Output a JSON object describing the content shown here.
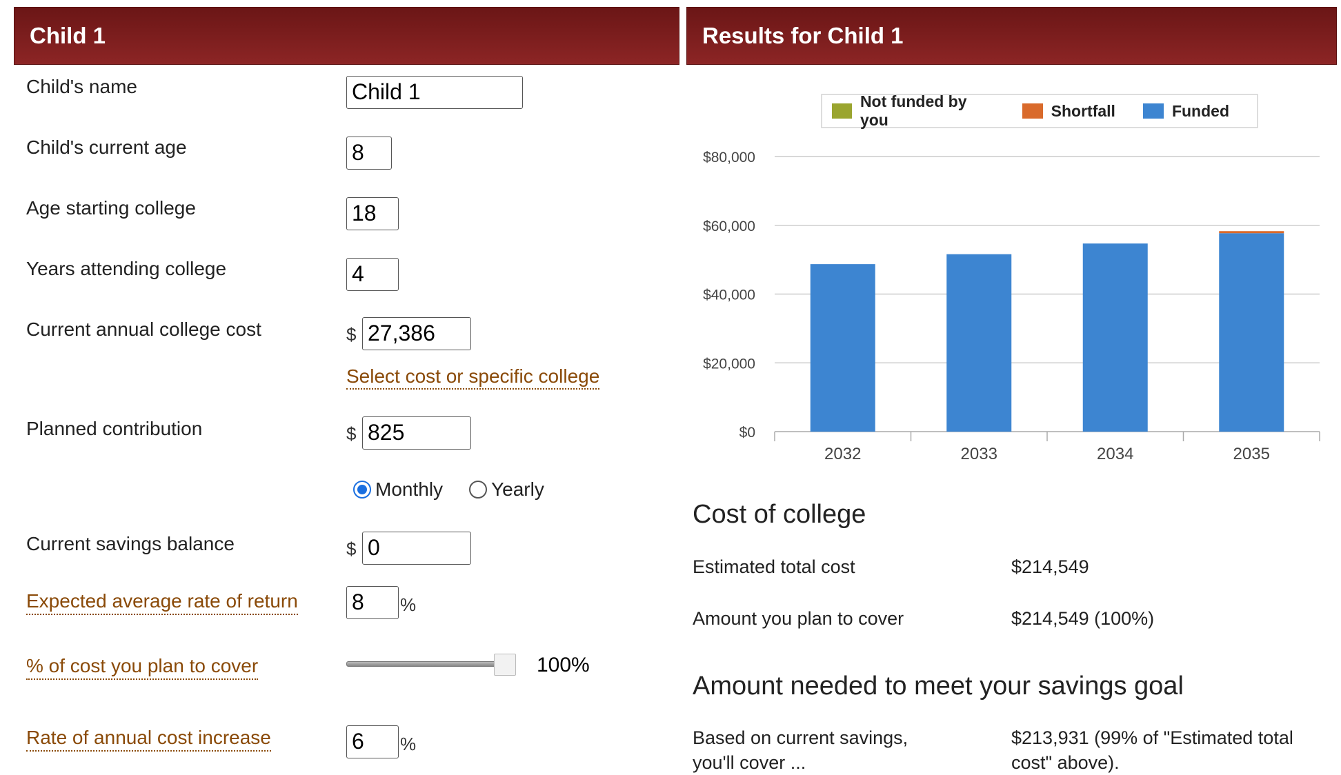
{
  "left_panel": {
    "title": "Child 1",
    "fields": {
      "child_name": {
        "label": "Child's name",
        "value": "Child 1"
      },
      "current_age": {
        "label": "Child's current age",
        "value": "8"
      },
      "age_starting": {
        "label": "Age starting college",
        "value": "18"
      },
      "years_attending": {
        "label": "Years attending college",
        "value": "4"
      },
      "annual_cost": {
        "label": "Current annual college cost",
        "prefix": "$",
        "value": "27,386"
      },
      "select_cost_link": "Select cost or specific college",
      "contribution": {
        "label": "Planned contribution",
        "prefix": "$",
        "value": "825"
      },
      "frequency": {
        "monthly": "Monthly",
        "yearly": "Yearly",
        "selected": "Monthly"
      },
      "savings_balance": {
        "label": "Current savings balance",
        "prefix": "$",
        "value": "0"
      },
      "rate_of_return": {
        "label": "Expected average rate of return",
        "value": "8",
        "suffix": "%"
      },
      "percent_cover": {
        "label": "% of cost you plan to cover",
        "value": "100%",
        "level": 1.0
      },
      "cost_increase": {
        "label": "Rate of annual cost increase",
        "value": "6",
        "suffix": "%"
      }
    }
  },
  "right_panel": {
    "title": "Results for Child 1",
    "legend": {
      "not_funded": {
        "label": "Not funded by you",
        "color": "#9aa52f"
      },
      "shortfall": {
        "label": "Shortfall",
        "color": "#d96a2b"
      },
      "funded": {
        "label": "Funded",
        "color": "#3d85d1"
      }
    },
    "cost_section": {
      "title": "Cost of college",
      "estimated_label": "Estimated total cost",
      "estimated_value": "$214,549",
      "cover_label": "Amount you plan to cover",
      "cover_value": "$214,549 (100%)"
    },
    "goal_section": {
      "title": "Amount needed to meet your savings goal",
      "based_label_line1": "Based on current savings,",
      "based_label_line2": "you'll cover ...",
      "based_value_line1": "$213,931 (99% of \"Estimated total",
      "based_value_line2": "cost\" above)."
    }
  },
  "chart_data": {
    "type": "bar",
    "stacked": true,
    "categories": [
      "2032",
      "2033",
      "2034",
      "2035"
    ],
    "series": [
      {
        "name": "Funded",
        "color": "#3d85d1",
        "values": [
          48700,
          51600,
          54700,
          57700
        ]
      },
      {
        "name": "Shortfall",
        "color": "#d96a2b",
        "values": [
          0,
          0,
          0,
          600
        ]
      },
      {
        "name": "Not funded by you",
        "color": "#9aa52f",
        "values": [
          0,
          0,
          0,
          0
        ]
      }
    ],
    "yticks": [
      "$0",
      "$20,000",
      "$40,000",
      "$60,000",
      "$80,000"
    ],
    "ytick_values": [
      0,
      20000,
      40000,
      60000,
      80000
    ],
    "ylim": [
      0,
      80000
    ],
    "grid": true,
    "legend_position": "top"
  }
}
